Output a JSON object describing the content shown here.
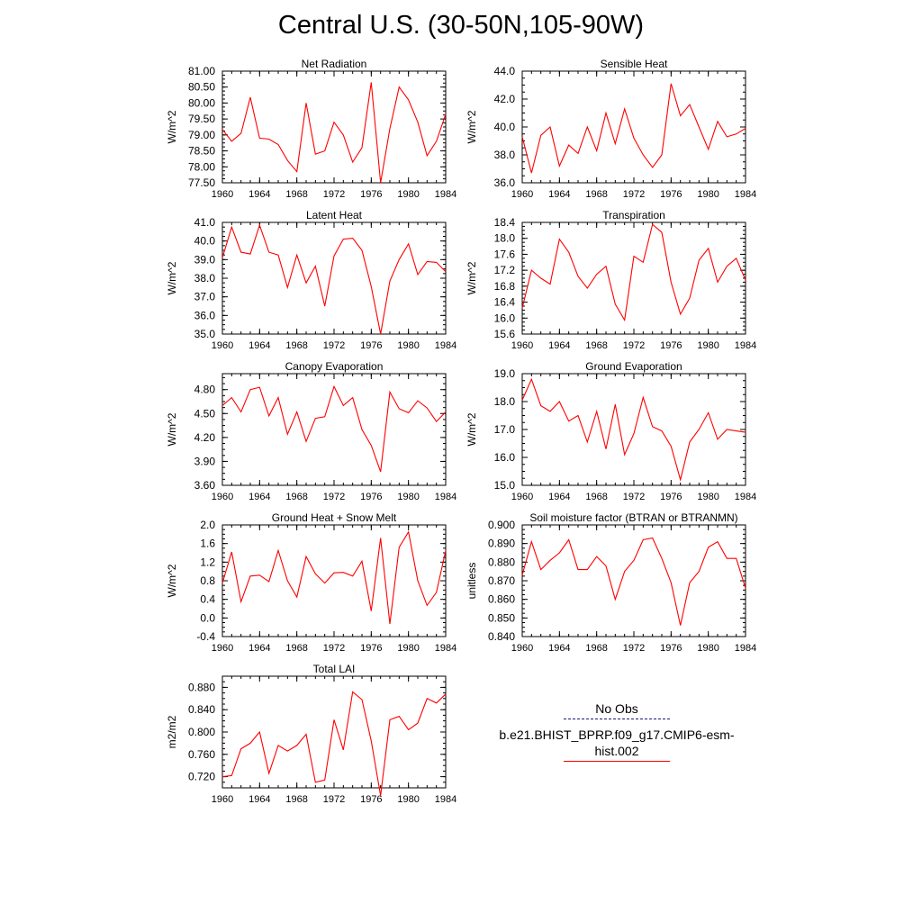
{
  "title": "Central U.S. (30-50N,105-90W)",
  "legend": {
    "obs_label": "No Obs",
    "model_label": "b.e21.BHIST_BPRP.f09_g17.CMIP6-esm-hist.002",
    "model_color": "#ff0000"
  },
  "chart_data": [
    {
      "type": "line",
      "title": "Net Radiation",
      "xlabel": "",
      "ylabel": "W/m^2",
      "xlim": [
        1960,
        1984
      ],
      "ylim": [
        77.5,
        81.0
      ],
      "xticks": [
        "1960",
        "1964",
        "1968",
        "1972",
        "1976",
        "1980",
        "1984"
      ],
      "yticks": [
        "77.50",
        "78.00",
        "78.50",
        "79.00",
        "79.50",
        "80.00",
        "80.50",
        "81.00"
      ],
      "x": [
        1960,
        1961,
        1962,
        1963,
        1964,
        1965,
        1966,
        1967,
        1968,
        1969,
        1970,
        1971,
        1972,
        1973,
        1974,
        1975,
        1976,
        1977,
        1978,
        1979,
        1980,
        1981,
        1982,
        1983,
        1984
      ],
      "series": [
        {
          "color": "#ff0000",
          "values": [
            79.17,
            78.8,
            79.05,
            80.18,
            78.9,
            78.87,
            78.7,
            78.2,
            77.85,
            80.0,
            78.4,
            78.5,
            79.4,
            79.0,
            78.15,
            78.6,
            80.65,
            77.5,
            79.2,
            80.5,
            80.1,
            79.4,
            78.35,
            78.8,
            79.65
          ]
        }
      ]
    },
    {
      "type": "line",
      "title": "Sensible Heat",
      "xlabel": "",
      "ylabel": "W/m^2",
      "xlim": [
        1960,
        1984
      ],
      "ylim": [
        36.0,
        44.0
      ],
      "xticks": [
        "1960",
        "1964",
        "1968",
        "1972",
        "1976",
        "1980",
        "1984"
      ],
      "yticks": [
        "36.0",
        "38.0",
        "40.0",
        "42.0",
        "44.0"
      ],
      "x": [
        1960,
        1961,
        1962,
        1963,
        1964,
        1965,
        1966,
        1967,
        1968,
        1969,
        1970,
        1971,
        1972,
        1973,
        1974,
        1975,
        1976,
        1977,
        1978,
        1979,
        1980,
        1981,
        1982,
        1983,
        1984
      ],
      "series": [
        {
          "color": "#ff0000",
          "values": [
            39.3,
            36.7,
            39.4,
            40.0,
            37.2,
            38.7,
            38.1,
            40.0,
            38.3,
            41.0,
            38.8,
            41.3,
            39.2,
            38.0,
            37.1,
            38.0,
            43.1,
            40.8,
            41.6,
            40.0,
            38.4,
            40.4,
            39.3,
            39.5,
            39.9
          ]
        }
      ]
    },
    {
      "type": "line",
      "title": "Latent Heat",
      "xlabel": "",
      "ylabel": "W/m^2",
      "xlim": [
        1960,
        1984
      ],
      "ylim": [
        35.0,
        41.0
      ],
      "xticks": [
        "1960",
        "1964",
        "1968",
        "1972",
        "1976",
        "1980",
        "1984"
      ],
      "yticks": [
        "35.0",
        "36.0",
        "37.0",
        "38.0",
        "39.0",
        "40.0",
        "41.0"
      ],
      "x": [
        1960,
        1961,
        1962,
        1963,
        1964,
        1965,
        1966,
        1967,
        1968,
        1969,
        1970,
        1971,
        1972,
        1973,
        1974,
        1975,
        1976,
        1977,
        1978,
        1979,
        1980,
        1981,
        1982,
        1983,
        1984
      ],
      "series": [
        {
          "color": "#ff0000",
          "values": [
            39.1,
            40.75,
            39.4,
            39.3,
            40.85,
            39.4,
            39.25,
            37.5,
            39.25,
            37.75,
            38.65,
            36.5,
            39.2,
            40.1,
            40.15,
            39.5,
            37.55,
            35.0,
            37.85,
            39.0,
            39.85,
            38.2,
            38.9,
            38.85,
            38.35
          ]
        }
      ]
    },
    {
      "type": "line",
      "title": "Transpiration",
      "xlabel": "",
      "ylabel": "W/m^2",
      "xlim": [
        1960,
        1984
      ],
      "ylim": [
        15.6,
        18.4
      ],
      "xticks": [
        "1960",
        "1964",
        "1968",
        "1972",
        "1976",
        "1980",
        "1984"
      ],
      "yticks": [
        "15.6",
        "16.0",
        "16.4",
        "16.8",
        "17.2",
        "17.6",
        "18.0",
        "18.4"
      ],
      "x": [
        1960,
        1961,
        1962,
        1963,
        1964,
        1965,
        1966,
        1967,
        1968,
        1969,
        1970,
        1971,
        1972,
        1973,
        1974,
        1975,
        1976,
        1977,
        1978,
        1979,
        1980,
        1981,
        1982,
        1983,
        1984
      ],
      "series": [
        {
          "color": "#ff0000",
          "values": [
            16.25,
            17.2,
            17.0,
            16.85,
            17.98,
            17.65,
            17.05,
            16.75,
            17.1,
            17.3,
            16.35,
            15.95,
            17.55,
            17.4,
            18.35,
            18.15,
            16.9,
            16.1,
            16.5,
            17.45,
            17.75,
            16.9,
            17.3,
            17.5,
            16.95
          ]
        }
      ]
    },
    {
      "type": "line",
      "title": "Canopy Evaporation",
      "xlabel": "",
      "ylabel": "W/m^2",
      "xlim": [
        1960,
        1984
      ],
      "ylim": [
        3.6,
        5.0
      ],
      "xticks": [
        "1960",
        "1964",
        "1968",
        "1972",
        "1976",
        "1980",
        "1984"
      ],
      "yticks": [
        "3.60",
        "3.90",
        "4.20",
        "4.50",
        "4.80"
      ],
      "x": [
        1960,
        1961,
        1962,
        1963,
        1964,
        1965,
        1966,
        1967,
        1968,
        1969,
        1970,
        1971,
        1972,
        1973,
        1974,
        1975,
        1976,
        1977,
        1978,
        1979,
        1980,
        1981,
        1982,
        1983,
        1984
      ],
      "series": [
        {
          "color": "#ff0000",
          "values": [
            4.6,
            4.7,
            4.52,
            4.8,
            4.83,
            4.47,
            4.7,
            4.24,
            4.52,
            4.15,
            4.44,
            4.46,
            4.84,
            4.6,
            4.7,
            4.3,
            4.1,
            3.77,
            4.77,
            4.56,
            4.51,
            4.66,
            4.57,
            4.4,
            4.52
          ]
        }
      ]
    },
    {
      "type": "line",
      "title": "Ground Evaporation",
      "xlabel": "",
      "ylabel": "W/m^2",
      "xlim": [
        1960,
        1984
      ],
      "ylim": [
        15.0,
        19.0
      ],
      "xticks": [
        "1960",
        "1964",
        "1968",
        "1972",
        "1976",
        "1980",
        "1984"
      ],
      "yticks": [
        "15.0",
        "16.0",
        "17.0",
        "18.0",
        "19.0"
      ],
      "x": [
        1960,
        1961,
        1962,
        1963,
        1964,
        1965,
        1966,
        1967,
        1968,
        1969,
        1970,
        1971,
        1972,
        1973,
        1974,
        1975,
        1976,
        1977,
        1978,
        1979,
        1980,
        1981,
        1982,
        1983,
        1984
      ],
      "series": [
        {
          "color": "#ff0000",
          "values": [
            18.05,
            18.8,
            17.85,
            17.65,
            18.0,
            17.3,
            17.5,
            16.55,
            17.65,
            16.3,
            17.9,
            16.1,
            16.85,
            18.15,
            17.1,
            16.95,
            16.4,
            15.2,
            16.55,
            17.0,
            17.6,
            16.65,
            17.0,
            16.95,
            16.9
          ]
        }
      ]
    },
    {
      "type": "line",
      "title": "Ground Heat + Snow Melt",
      "xlabel": "",
      "ylabel": "W/m^2",
      "xlim": [
        1960,
        1984
      ],
      "ylim": [
        -0.4,
        2.0
      ],
      "xticks": [
        "1960",
        "1964",
        "1968",
        "1972",
        "1976",
        "1980",
        "1984"
      ],
      "yticks": [
        "-0.4",
        "0.0",
        "0.4",
        "0.8",
        "1.2",
        "1.6",
        "2.0"
      ],
      "x": [
        1960,
        1961,
        1962,
        1963,
        1964,
        1965,
        1966,
        1967,
        1968,
        1969,
        1970,
        1971,
        1972,
        1973,
        1974,
        1975,
        1976,
        1977,
        1978,
        1979,
        1980,
        1981,
        1982,
        1983,
        1984
      ],
      "series": [
        {
          "color": "#ff0000",
          "values": [
            0.75,
            1.42,
            0.35,
            0.9,
            0.92,
            0.78,
            1.45,
            0.8,
            0.45,
            1.32,
            0.95,
            0.75,
            0.97,
            0.98,
            0.9,
            1.22,
            0.15,
            1.72,
            -0.13,
            1.52,
            1.85,
            0.8,
            0.27,
            0.55,
            1.45
          ]
        }
      ]
    },
    {
      "type": "line",
      "title": "Soil moisture factor (BTRAN or BTRANMN)",
      "xlabel": "",
      "ylabel": "unitless",
      "xlim": [
        1960,
        1984
      ],
      "ylim": [
        0.84,
        0.9
      ],
      "xticks": [
        "1960",
        "1964",
        "1968",
        "1972",
        "1976",
        "1980",
        "1984"
      ],
      "yticks": [
        "0.840",
        "0.850",
        "0.860",
        "0.870",
        "0.880",
        "0.890",
        "0.900"
      ],
      "x": [
        1960,
        1961,
        1962,
        1963,
        1964,
        1965,
        1966,
        1967,
        1968,
        1969,
        1970,
        1971,
        1972,
        1973,
        1974,
        1975,
        1976,
        1977,
        1978,
        1979,
        1980,
        1981,
        1982,
        1983,
        1984
      ],
      "series": [
        {
          "color": "#ff0000",
          "values": [
            0.873,
            0.891,
            0.876,
            0.881,
            0.885,
            0.892,
            0.876,
            0.876,
            0.883,
            0.878,
            0.86,
            0.875,
            0.881,
            0.892,
            0.893,
            0.882,
            0.869,
            0.846,
            0.869,
            0.875,
            0.888,
            0.891,
            0.882,
            0.882,
            0.866
          ]
        }
      ]
    },
    {
      "type": "line",
      "title": "Total LAI",
      "xlabel": "",
      "ylabel": "m2/m2",
      "xlim": [
        1960,
        1984
      ],
      "ylim": [
        0.7,
        0.9
      ],
      "xticks": [
        "1960",
        "1964",
        "1968",
        "1972",
        "1976",
        "1980",
        "1984"
      ],
      "yticks": [
        "0.720",
        "0.760",
        "0.800",
        "0.840",
        "0.880"
      ],
      "x": [
        1960,
        1961,
        1962,
        1963,
        1964,
        1965,
        1966,
        1967,
        1968,
        1969,
        1970,
        1971,
        1972,
        1973,
        1974,
        1975,
        1976,
        1977,
        1978,
        1979,
        1980,
        1981,
        1982,
        1983,
        1984
      ],
      "series": [
        {
          "color": "#ff0000",
          "values": [
            0.72,
            0.722,
            0.77,
            0.78,
            0.8,
            0.726,
            0.776,
            0.766,
            0.776,
            0.796,
            0.71,
            0.714,
            0.822,
            0.768,
            0.872,
            0.858,
            0.784,
            0.686,
            0.822,
            0.828,
            0.804,
            0.816,
            0.86,
            0.852,
            0.868
          ]
        }
      ]
    }
  ]
}
